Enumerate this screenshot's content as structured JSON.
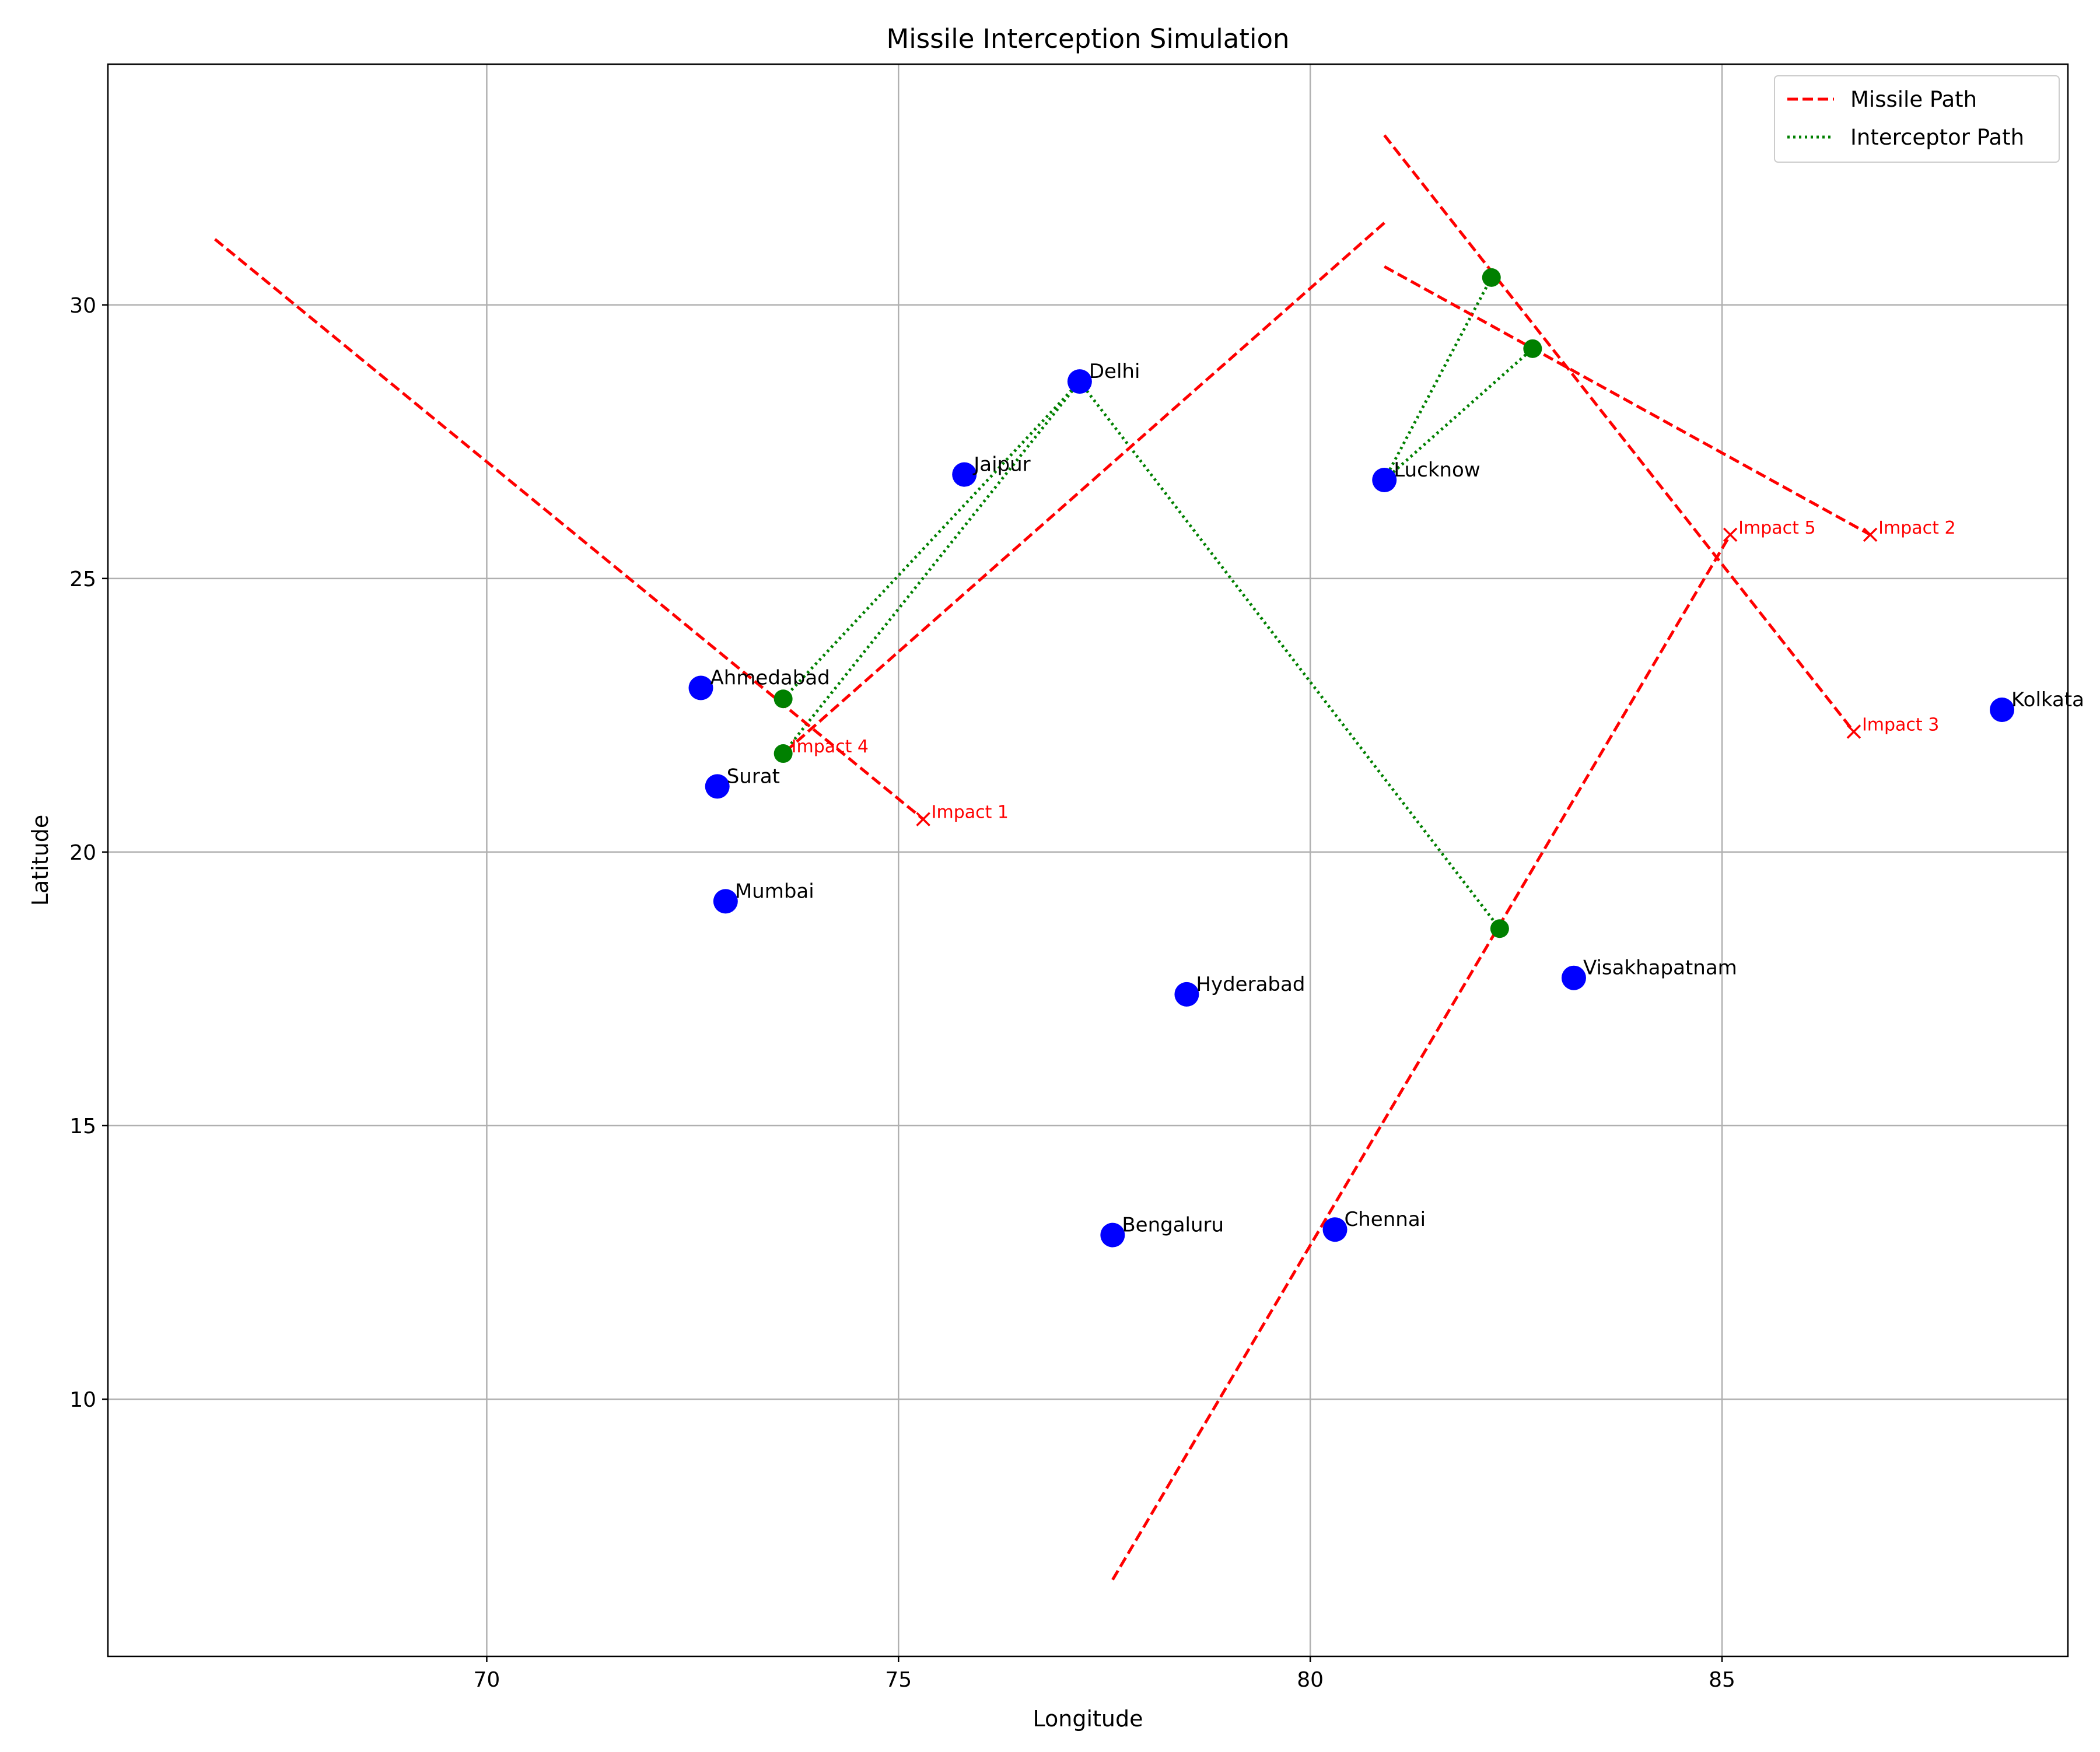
{
  "chart_data": {
    "type": "scatter",
    "title": "Missile Interception Simulation",
    "xlabel": "Longitude",
    "ylabel": "Latitude",
    "xlim": [
      65.4,
      89.2
    ],
    "ylim": [
      5.3,
      34.4
    ],
    "xticks": [
      70,
      75,
      80,
      85
    ],
    "yticks": [
      10,
      15,
      20,
      25,
      30
    ],
    "grid": true,
    "legend_position": "top-right",
    "colors": {
      "city": "#0000ff",
      "missile": "#ff0000",
      "interceptor": "#008000",
      "impact": "#ff0000",
      "grid": "#b0b0b0"
    },
    "legend": [
      {
        "label": "Missile Path",
        "style": "dashed",
        "color": "#ff0000"
      },
      {
        "label": "Interceptor Path",
        "style": "dotted",
        "color": "#008000"
      }
    ],
    "cities": [
      {
        "name": "Delhi",
        "lon": 77.2,
        "lat": 28.6
      },
      {
        "name": "Jaipur",
        "lon": 75.8,
        "lat": 26.9
      },
      {
        "name": "Lucknow",
        "lon": 80.9,
        "lat": 26.8
      },
      {
        "name": "Ahmedabad",
        "lon": 72.6,
        "lat": 23.0
      },
      {
        "name": "Surat",
        "lon": 72.8,
        "lat": 21.2
      },
      {
        "name": "Mumbai",
        "lon": 72.9,
        "lat": 19.1
      },
      {
        "name": "Hyderabad",
        "lon": 78.5,
        "lat": 17.4
      },
      {
        "name": "Visakhapatnam",
        "lon": 83.2,
        "lat": 17.7
      },
      {
        "name": "Kolkata",
        "lon": 88.4,
        "lat": 22.6
      },
      {
        "name": "Bengaluru",
        "lon": 77.6,
        "lat": 13.0
      },
      {
        "name": "Chennai",
        "lon": 80.3,
        "lat": 13.1
      }
    ],
    "missiles": [
      {
        "start": [
          66.7,
          31.2
        ],
        "end": [
          75.3,
          20.6
        ],
        "impact_label": "Impact 1"
      },
      {
        "start": [
          80.9,
          30.7
        ],
        "end": [
          86.8,
          25.8
        ],
        "impact_label": "Impact 2"
      },
      {
        "start": [
          80.9,
          33.1
        ],
        "end": [
          86.6,
          22.2
        ],
        "impact_label": "Impact 3"
      },
      {
        "start": [
          80.9,
          31.5
        ],
        "end": [
          73.6,
          21.8
        ],
        "impact_label": "Impact 4"
      },
      {
        "start": [
          77.6,
          6.7
        ],
        "end": [
          85.1,
          25.8
        ],
        "impact_label": "Impact 5"
      }
    ],
    "interceptions": [
      {
        "from": [
          77.2,
          28.6
        ],
        "to": [
          73.6,
          22.8
        ]
      },
      {
        "from": [
          77.2,
          28.6
        ],
        "to": [
          73.6,
          21.8
        ]
      },
      {
        "from": [
          77.2,
          28.6
        ],
        "to": [
          82.3,
          18.6
        ]
      },
      {
        "from": [
          80.9,
          26.8
        ],
        "to": [
          82.2,
          30.5
        ]
      },
      {
        "from": [
          80.9,
          26.8
        ],
        "to": [
          82.7,
          29.2
        ]
      }
    ]
  }
}
